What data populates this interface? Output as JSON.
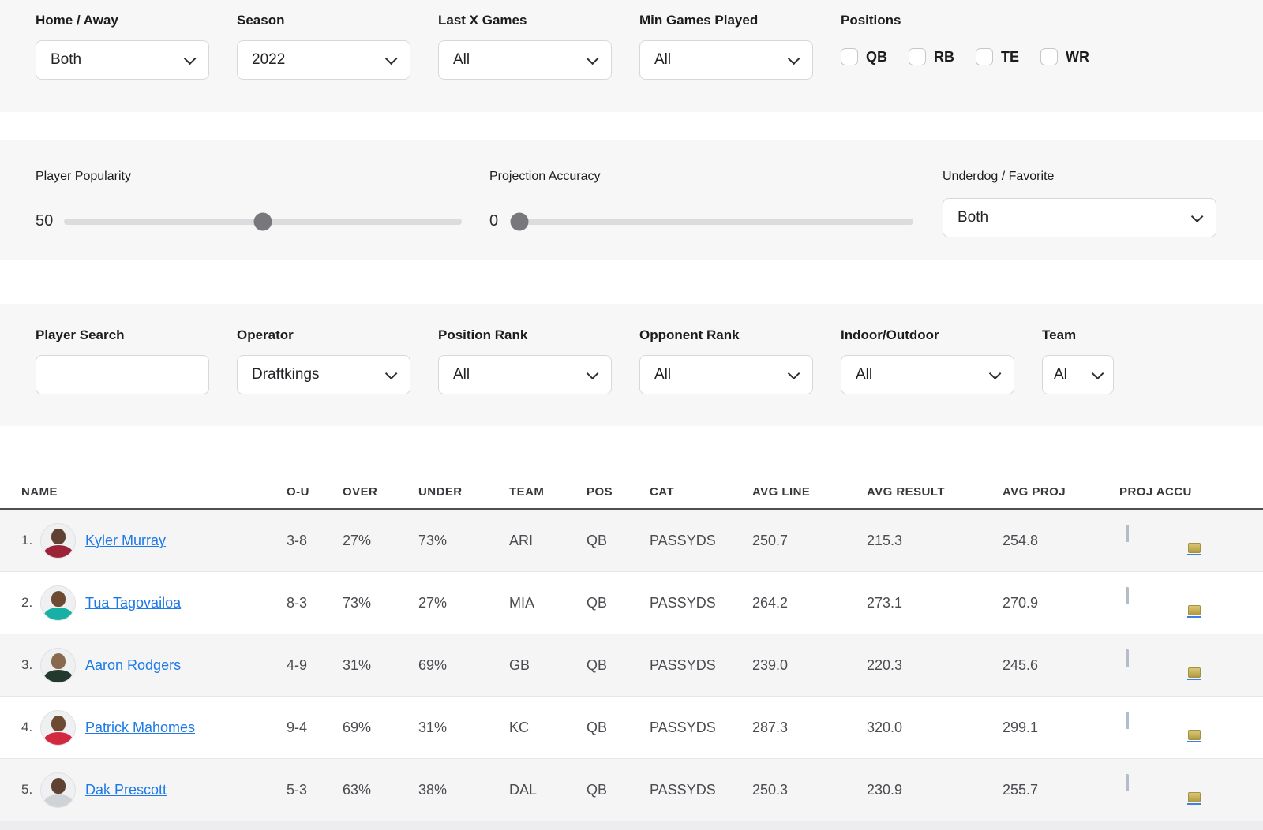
{
  "filters_row1": {
    "home_away": {
      "label": "Home / Away",
      "value": "Both"
    },
    "season": {
      "label": "Season",
      "value": "2022"
    },
    "last_x_games": {
      "label": "Last X Games",
      "value": "All"
    },
    "min_games_played": {
      "label": "Min Games Played",
      "value": "All"
    },
    "positions": {
      "label": "Positions",
      "options": [
        {
          "label": "QB",
          "checked": false
        },
        {
          "label": "RB",
          "checked": false
        },
        {
          "label": "TE",
          "checked": false
        },
        {
          "label": "WR",
          "checked": false
        }
      ]
    }
  },
  "filters_row2": {
    "player_popularity": {
      "label": "Player Popularity",
      "value": "50",
      "percent": 50
    },
    "projection_accuracy": {
      "label": "Projection Accuracy",
      "value": "0",
      "percent": 0
    },
    "underdog_favorite": {
      "label": "Underdog / Favorite",
      "value": "Both"
    }
  },
  "filters_row3": {
    "player_search": {
      "label": "Player Search",
      "value": "",
      "placeholder": ""
    },
    "operator": {
      "label": "Operator",
      "value": "Draftkings"
    },
    "position_rank": {
      "label": "Position Rank",
      "value": "All"
    },
    "opponent_rank": {
      "label": "Opponent Rank",
      "value": "All"
    },
    "indoor_outdoor": {
      "label": "Indoor/Outdoor",
      "value": "All"
    },
    "team": {
      "label": "Team",
      "value": "Al"
    }
  },
  "table": {
    "columns": [
      "NAME",
      "O-U",
      "OVER",
      "UNDER",
      "TEAM",
      "POS",
      "CAT",
      "AVG LINE",
      "AVG RESULT",
      "AVG PROJ",
      "PROJ ACCU"
    ],
    "rows": [
      {
        "rank": "1.",
        "name": "Kyler Murray",
        "ou": "3-8",
        "over": "27%",
        "under": "73%",
        "team": "ARI",
        "pos": "QB",
        "cat": "PASSYDS",
        "avg_line": "250.7",
        "avg_result": "215.3",
        "avg_proj": "254.8",
        "proj_accu": "locked",
        "jersey": "#9b2237",
        "skin": "#5f4233"
      },
      {
        "rank": "2.",
        "name": "Tua Tagovailoa",
        "ou": "8-3",
        "over": "73%",
        "under": "27%",
        "team": "MIA",
        "pos": "QB",
        "cat": "PASSYDS",
        "avg_line": "264.2",
        "avg_result": "273.1",
        "avg_proj": "270.9",
        "proj_accu": "locked",
        "jersey": "#16b0a5",
        "skin": "#6e4a33"
      },
      {
        "rank": "3.",
        "name": "Aaron Rodgers",
        "ou": "4-9",
        "over": "31%",
        "under": "69%",
        "team": "GB",
        "pos": "QB",
        "cat": "PASSYDS",
        "avg_line": "239.0",
        "avg_result": "220.3",
        "avg_proj": "245.6",
        "proj_accu": "locked",
        "jersey": "#24392e",
        "skin": "#8a6a4e"
      },
      {
        "rank": "4.",
        "name": "Patrick Mahomes",
        "ou": "9-4",
        "over": "69%",
        "under": "31%",
        "team": "KC",
        "pos": "QB",
        "cat": "PASSYDS",
        "avg_line": "287.3",
        "avg_result": "320.0",
        "avg_proj": "299.1",
        "proj_accu": "locked",
        "jersey": "#d22840",
        "skin": "#6e4a33"
      },
      {
        "rank": "5.",
        "name": "Dak Prescott",
        "ou": "5-3",
        "over": "63%",
        "under": "38%",
        "team": "DAL",
        "pos": "QB",
        "cat": "PASSYDS",
        "avg_line": "250.3",
        "avg_result": "230.9",
        "avg_proj": "255.7",
        "proj_accu": "locked",
        "jersey": "#cfd2d6",
        "skin": "#5f4233"
      }
    ]
  },
  "colors": {
    "section_bg": "#f7f7f8",
    "link_blue": "#1d79e8",
    "lock_gold": "#c3ad55",
    "zebra_row": "#f5f5f6",
    "slider_thumb": "#77777c"
  }
}
